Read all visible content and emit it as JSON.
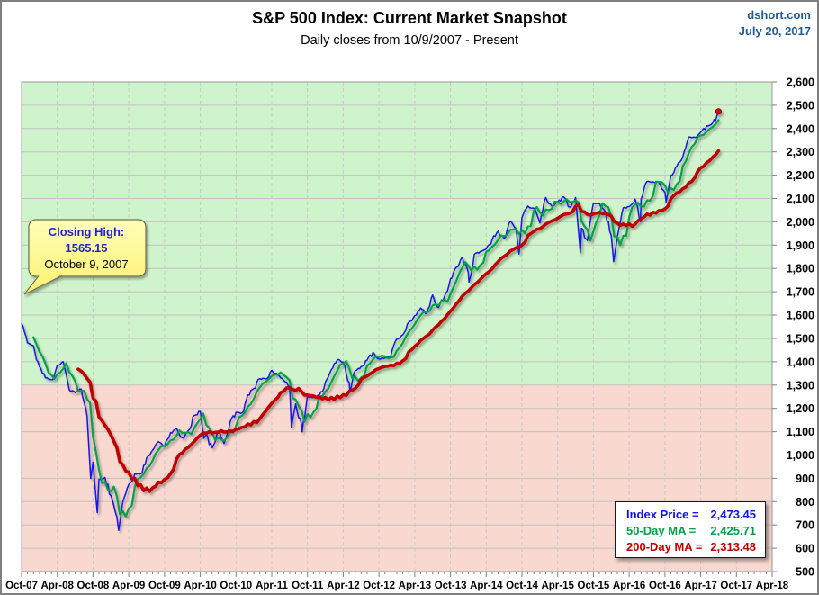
{
  "header": {
    "source": "dshort.com",
    "date": "July 20, 2017"
  },
  "callout": {
    "line1": "Closing High:",
    "line2": "1565.15",
    "line3": "October 9, 2007"
  },
  "legend": {
    "rows": [
      {
        "label": "Index Price =",
        "value": "2,473.45",
        "color": "#1414e8"
      },
      {
        "label": "50-Day MA =",
        "value": "2,425.71",
        "color": "#00a14a"
      },
      {
        "label": "200-Day MA =",
        "value": "2,313.48",
        "color": "#c00000"
      }
    ]
  },
  "chart_data": {
    "type": "line",
    "title": "S&P 500 Index: Current Market Snapshot",
    "subtitle": "Daily closes from 10/9/2007 - Present",
    "grid": true,
    "legend_position": "bottom-right",
    "x_axis": {
      "tick_labels": [
        "Oct-07",
        "Apr-08",
        "Oct-08",
        "Apr-09",
        "Oct-09",
        "Apr-10",
        "Oct-10",
        "Apr-11",
        "Oct-11",
        "Apr-12",
        "Oct-12",
        "Apr-13",
        "Oct-13",
        "Apr-14",
        "Oct-14",
        "Apr-15",
        "Oct-15",
        "Apr-16",
        "Oct-16",
        "Apr-17",
        "Oct-17",
        "Apr-18"
      ],
      "label_every_months": 6,
      "months_total": 126,
      "minor_tick_every_months": 1
    },
    "y_axis": {
      "min": 500,
      "max": 2600,
      "step": 100
    },
    "zones": [
      {
        "from": 1300,
        "to": 2600,
        "color": "#cff3ca",
        "meaning": "above 10/9/2007 threshold"
      },
      {
        "from": 500,
        "to": 1300,
        "color": "#f8d8cf",
        "meaning": "below threshold"
      }
    ],
    "grid_colors": {
      "h_solid": "#c2c2c2",
      "v_dashed": "#c9c9c9",
      "plot_border": "#999999",
      "ticks": "#7f7f7f"
    },
    "series": [
      {
        "name": "Index Price",
        "color": "#1212e8",
        "width": 1.5,
        "style": "daily-close",
        "points": [
          [
            0,
            1565.15
          ],
          [
            1,
            1481.14
          ],
          [
            2,
            1468.36
          ],
          [
            3,
            1378.55
          ],
          [
            4,
            1330.63
          ],
          [
            5,
            1322.7
          ],
          [
            6,
            1385.59
          ],
          [
            7,
            1400.38
          ],
          [
            8,
            1280.0
          ],
          [
            9,
            1267.38
          ],
          [
            10,
            1282.83
          ],
          [
            11,
            1166.36
          ],
          [
            11.6,
            899.22
          ],
          [
            12,
            968.75
          ],
          [
            12.7,
            752.44
          ],
          [
            13,
            896.24
          ],
          [
            14,
            903.25
          ],
          [
            15,
            825.88
          ],
          [
            16,
            735.09
          ],
          [
            16.3,
            676.53
          ],
          [
            17,
            797.87
          ],
          [
            18,
            872.81
          ],
          [
            19,
            919.14
          ],
          [
            20,
            919.32
          ],
          [
            21,
            987.48
          ],
          [
            22,
            1020.62
          ],
          [
            23,
            1057.08
          ],
          [
            24,
            1036.19
          ],
          [
            25,
            1095.63
          ],
          [
            26,
            1115.1
          ],
          [
            27,
            1073.87
          ],
          [
            28,
            1104.49
          ],
          [
            29,
            1169.43
          ],
          [
            30,
            1186.69
          ],
          [
            30.6,
            1071.59
          ],
          [
            31,
            1089.41
          ],
          [
            32,
            1030.71
          ],
          [
            33,
            1101.6
          ],
          [
            34,
            1049.33
          ],
          [
            35,
            1141.2
          ],
          [
            36,
            1183.26
          ],
          [
            37,
            1180.55
          ],
          [
            38,
            1257.64
          ],
          [
            39,
            1286.12
          ],
          [
            40,
            1327.22
          ],
          [
            41,
            1325.83
          ],
          [
            42,
            1363.61
          ],
          [
            43,
            1345.2
          ],
          [
            44,
            1320.64
          ],
          [
            45,
            1292.28
          ],
          [
            45.3,
            1119.46
          ],
          [
            46,
            1218.89
          ],
          [
            47,
            1131.42
          ],
          [
            47.1,
            1099.23
          ],
          [
            48,
            1253.3
          ],
          [
            49,
            1246.96
          ],
          [
            50,
            1257.6
          ],
          [
            51,
            1312.41
          ],
          [
            52,
            1365.68
          ],
          [
            53,
            1408.47
          ],
          [
            54,
            1397.91
          ],
          [
            55,
            1310.33
          ],
          [
            55.1,
            1278.04
          ],
          [
            56,
            1362.16
          ],
          [
            57,
            1379.32
          ],
          [
            58,
            1406.58
          ],
          [
            59,
            1440.67
          ],
          [
            60,
            1412.16
          ],
          [
            61,
            1416.18
          ],
          [
            62,
            1426.19
          ],
          [
            63,
            1498.11
          ],
          [
            64,
            1514.68
          ],
          [
            65,
            1569.19
          ],
          [
            66,
            1597.57
          ],
          [
            67,
            1630.74
          ],
          [
            68,
            1606.28
          ],
          [
            69,
            1685.73
          ],
          [
            70,
            1632.97
          ],
          [
            71,
            1681.55
          ],
          [
            72,
            1756.54
          ],
          [
            73,
            1805.81
          ],
          [
            74,
            1848.36
          ],
          [
            75,
            1782.59
          ],
          [
            75.1,
            1741.89
          ],
          [
            76,
            1859.45
          ],
          [
            77,
            1872.34
          ],
          [
            78,
            1883.95
          ],
          [
            79,
            1923.57
          ],
          [
            80,
            1960.23
          ],
          [
            81,
            1930.67
          ],
          [
            82,
            2003.37
          ],
          [
            83,
            1972.29
          ],
          [
            83.5,
            1862.49
          ],
          [
            84,
            2018.05
          ],
          [
            85,
            2067.56
          ],
          [
            86,
            2058.9
          ],
          [
            87,
            1994.99
          ],
          [
            88,
            2104.5
          ],
          [
            89,
            2067.89
          ],
          [
            90,
            2085.51
          ],
          [
            91,
            2107.39
          ],
          [
            92,
            2063.11
          ],
          [
            93,
            2103.84
          ],
          [
            93.8,
            1867.61
          ],
          [
            94,
            1972.18
          ],
          [
            95,
            1920.03
          ],
          [
            96,
            2079.36
          ],
          [
            97,
            2080.41
          ],
          [
            98,
            2043.94
          ],
          [
            99,
            1940.24
          ],
          [
            99.4,
            1829.08
          ],
          [
            100,
            1932.23
          ],
          [
            101,
            2059.74
          ],
          [
            102,
            2065.3
          ],
          [
            103,
            2096.95
          ],
          [
            103.9,
            2000.54
          ],
          [
            104,
            2098.86
          ],
          [
            105,
            2173.6
          ],
          [
            106,
            2170.95
          ],
          [
            107,
            2168.27
          ],
          [
            108,
            2126.15
          ],
          [
            108.2,
            2085.18
          ],
          [
            109,
            2198.81
          ],
          [
            110,
            2238.83
          ],
          [
            111,
            2278.87
          ],
          [
            112,
            2363.64
          ],
          [
            113,
            2362.72
          ],
          [
            114,
            2384.2
          ],
          [
            115,
            2411.8
          ],
          [
            116,
            2423.41
          ],
          [
            117,
            2473.45
          ]
        ],
        "current_value": 2473.45
      },
      {
        "name": "50-Day MA",
        "color": "#00a14a",
        "width": 2.2,
        "derive": {
          "method": "trailing_mean",
          "window_months": 2.5,
          "start_month": 2,
          "of_series": "Index Price"
        },
        "current_value": 2425.71
      },
      {
        "name": "200-Day MA",
        "color": "#c00000",
        "width": 3.6,
        "derive": {
          "method": "trailing_mean",
          "window_months": 9.5,
          "start_month": 9.5,
          "of_series": "Index Price"
        },
        "current_value": 2313.48
      }
    ],
    "end_marker": {
      "color": "#e10000",
      "edge": "#7f0000"
    },
    "annotations": {
      "closing_high": {
        "text": [
          "Closing High:",
          "1565.15",
          "October 9, 2007"
        ],
        "points_to_month": 0,
        "box_fill": "#fff894",
        "box_edge": "#6e6e50"
      }
    }
  }
}
